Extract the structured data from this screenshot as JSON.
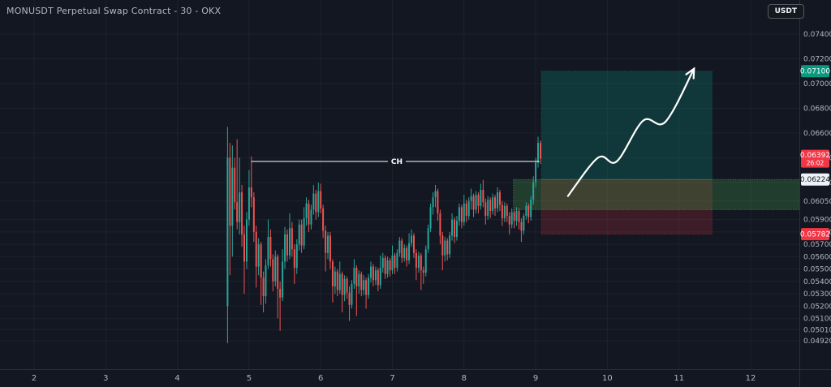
{
  "header": {
    "symbol_title": "MONUSDT Perpetual Swap Contract - 30 - OKX",
    "currency_button": "USDT"
  },
  "colors": {
    "background": "#131722",
    "grid": "#1e222d",
    "axis_border": "#2a2e39",
    "axis_text": "#b2b5be",
    "candle_up": "#26a69a",
    "candle_down": "#ef5350",
    "badge_red": "#f23645",
    "badge_teal": "#089981",
    "badge_white": "#eef1f6",
    "badge_white_text": "#131722",
    "target_zone_fill": "rgba(8,153,129,0.25)",
    "target_zone_border": "rgba(8,153,129,0.55)",
    "stop_zone_fill": "rgba(242,54,69,0.18)",
    "stop_zone_border": "rgba(242,54,69,0.55)",
    "demand_band_fill": "rgba(76,175,80,0.25)",
    "demand_band_border": "rgba(110,190,115,0.6)",
    "drawing_white": "#ffffff"
  },
  "chart_data": {
    "type": "candlestick",
    "symbol": "MONUSDT",
    "contract": "Perpetual Swap Contract",
    "interval": "30",
    "exchange": "OKX",
    "last_price": 0.06392,
    "bar_countdown": "26:02",
    "x_axis": {
      "tick_labels": [
        "2",
        "3",
        "4",
        "5",
        "6",
        "7",
        "8",
        "9",
        "10",
        "11",
        "12"
      ],
      "tick_values": [
        2,
        3,
        4,
        5,
        6,
        7,
        8,
        9,
        10,
        11,
        12
      ]
    },
    "y_axis": {
      "tick_labels": [
        "0.07400",
        "0.07200",
        "0.07000",
        "0.06800",
        "0.06600",
        "0.06400",
        "0.06200",
        "0.06050",
        "0.05900",
        "0.05800",
        "0.05700",
        "0.05600",
        "0.05500",
        "0.05400",
        "0.05300",
        "0.05200",
        "0.05100",
        "0.05010",
        "0.04920"
      ],
      "visible_price_range": [
        0.0469,
        0.0768
      ],
      "scale": "linear"
    },
    "price_badges": [
      {
        "id": "target",
        "label": "0.07100",
        "price": 0.071,
        "style": "teal"
      },
      {
        "id": "last",
        "label": "0.06392",
        "sub_label": "26:02",
        "price": 0.06392,
        "style": "red"
      },
      {
        "id": "entry",
        "label": "0.06224",
        "price": 0.06224,
        "style": "white"
      },
      {
        "id": "stop",
        "label": "0.05782",
        "price": 0.05782,
        "style": "red"
      }
    ],
    "annotations": {
      "ch_line": {
        "label": "CH",
        "price": 0.0637,
        "day_start": 5.03,
        "day_end": 9.05
      },
      "target_zone": {
        "price_top": 0.071,
        "price_bottom": 0.06224,
        "day_start": 9.08,
        "day_end": 11.46
      },
      "stop_zone": {
        "price_top": 0.06224,
        "price_bottom": 0.05782,
        "day_start": 9.08,
        "day_end": 11.46
      },
      "demand_band": {
        "price_top": 0.06224,
        "price_bottom": 0.0598,
        "day_start": 8.69,
        "day_end": 12.68
      },
      "arrow": {
        "points": [
          [
            9.45,
            0.0609
          ],
          [
            9.87,
            0.064
          ],
          [
            10.13,
            0.0637
          ],
          [
            10.5,
            0.067
          ],
          [
            10.81,
            0.0669
          ],
          [
            11.21,
            0.0712
          ]
        ]
      }
    },
    "candles": [
      [
        4.7,
        0.052,
        0.0665,
        0.049,
        0.064
      ],
      [
        4.733,
        0.064,
        0.0652,
        0.0545,
        0.0585
      ],
      [
        4.767,
        0.0585,
        0.065,
        0.056,
        0.0632
      ],
      [
        4.8,
        0.0632,
        0.064,
        0.0598,
        0.0604
      ],
      [
        4.833,
        0.0604,
        0.0655,
        0.0582,
        0.0588
      ],
      [
        4.867,
        0.0588,
        0.064,
        0.0578,
        0.0612
      ],
      [
        4.9,
        0.0612,
        0.0618,
        0.0568,
        0.0578
      ],
      [
        4.933,
        0.0578,
        0.0585,
        0.053,
        0.0556
      ],
      [
        4.967,
        0.0556,
        0.0596,
        0.055,
        0.059
      ],
      [
        5.0,
        0.059,
        0.063,
        0.0585,
        0.0616
      ],
      [
        5.033,
        0.0616,
        0.0641,
        0.06,
        0.0608
      ],
      [
        5.067,
        0.0608,
        0.0612,
        0.0572,
        0.058
      ],
      [
        5.1,
        0.058,
        0.0585,
        0.0535,
        0.0552
      ],
      [
        5.133,
        0.0552,
        0.0575,
        0.0545,
        0.057
      ],
      [
        5.167,
        0.057,
        0.0572,
        0.0521,
        0.0543
      ],
      [
        5.2,
        0.0543,
        0.0548,
        0.0515,
        0.0528
      ],
      [
        5.233,
        0.0528,
        0.0558,
        0.0522,
        0.0553
      ],
      [
        5.267,
        0.0553,
        0.059,
        0.055,
        0.0576
      ],
      [
        5.3,
        0.0576,
        0.0582,
        0.0552,
        0.0558
      ],
      [
        5.333,
        0.0558,
        0.0562,
        0.0532,
        0.054
      ],
      [
        5.367,
        0.054,
        0.0565,
        0.0536,
        0.056
      ],
      [
        5.4,
        0.056,
        0.0562,
        0.051,
        0.0534
      ],
      [
        5.433,
        0.0534,
        0.054,
        0.05,
        0.0527
      ],
      [
        5.467,
        0.0527,
        0.0566,
        0.0524,
        0.0556
      ],
      [
        5.5,
        0.0556,
        0.0584,
        0.055,
        0.0578
      ],
      [
        5.533,
        0.0578,
        0.0582,
        0.0556,
        0.0561
      ],
      [
        5.567,
        0.0561,
        0.0595,
        0.0558,
        0.0583
      ],
      [
        5.6,
        0.0583,
        0.0588,
        0.056,
        0.0566
      ],
      [
        5.633,
        0.0566,
        0.057,
        0.0538,
        0.0551
      ],
      [
        5.667,
        0.0551,
        0.0574,
        0.0546,
        0.057
      ],
      [
        5.7,
        0.057,
        0.059,
        0.0565,
        0.0586
      ],
      [
        5.733,
        0.0586,
        0.059,
        0.0563,
        0.0569
      ],
      [
        5.767,
        0.0569,
        0.06,
        0.0566,
        0.0591
      ],
      [
        5.8,
        0.0591,
        0.0608,
        0.0585,
        0.0603
      ],
      [
        5.833,
        0.0603,
        0.0606,
        0.058,
        0.0586
      ],
      [
        5.867,
        0.0586,
        0.0602,
        0.0582,
        0.0598
      ],
      [
        5.9,
        0.0598,
        0.0618,
        0.0594,
        0.0611
      ],
      [
        5.933,
        0.0611,
        0.0614,
        0.059,
        0.0596
      ],
      [
        5.967,
        0.0596,
        0.062,
        0.0592,
        0.0613
      ],
      [
        6.0,
        0.0613,
        0.0619,
        0.0595,
        0.0599
      ],
      [
        6.033,
        0.0599,
        0.0602,
        0.0575,
        0.0581
      ],
      [
        6.067,
        0.0581,
        0.0585,
        0.0548,
        0.0563
      ],
      [
        6.1,
        0.0563,
        0.058,
        0.0558,
        0.0577
      ],
      [
        6.133,
        0.0577,
        0.058,
        0.055,
        0.0556
      ],
      [
        6.167,
        0.0556,
        0.0558,
        0.0523,
        0.0536
      ],
      [
        6.2,
        0.0536,
        0.0552,
        0.053,
        0.0548
      ],
      [
        6.233,
        0.0548,
        0.055,
        0.0528,
        0.0533
      ],
      [
        6.267,
        0.0533,
        0.0556,
        0.053,
        0.0546
      ],
      [
        6.3,
        0.0546,
        0.0548,
        0.0515,
        0.0529
      ],
      [
        6.333,
        0.0529,
        0.0545,
        0.0524,
        0.0542
      ],
      [
        6.367,
        0.0542,
        0.0544,
        0.0526,
        0.0531
      ],
      [
        6.4,
        0.0531,
        0.0536,
        0.0508,
        0.0521
      ],
      [
        6.433,
        0.0521,
        0.0541,
        0.0518,
        0.0538
      ],
      [
        6.467,
        0.0538,
        0.0558,
        0.0534,
        0.0551
      ],
      [
        6.5,
        0.0551,
        0.0553,
        0.0512,
        0.0536
      ],
      [
        6.533,
        0.0536,
        0.0549,
        0.053,
        0.0546
      ],
      [
        6.567,
        0.0546,
        0.0548,
        0.0528,
        0.0533
      ],
      [
        6.6,
        0.0533,
        0.0545,
        0.0529,
        0.0541
      ],
      [
        6.633,
        0.0541,
        0.0543,
        0.0518,
        0.0529
      ],
      [
        6.667,
        0.0529,
        0.0546,
        0.0526,
        0.0543
      ],
      [
        6.7,
        0.0543,
        0.0556,
        0.0539,
        0.0552
      ],
      [
        6.733,
        0.0552,
        0.0554,
        0.0536,
        0.0541
      ],
      [
        6.767,
        0.0541,
        0.0552,
        0.0537,
        0.0549
      ],
      [
        6.8,
        0.0549,
        0.0551,
        0.0532,
        0.0537
      ],
      [
        6.833,
        0.0537,
        0.0561,
        0.0534,
        0.0551
      ],
      [
        6.867,
        0.0551,
        0.0563,
        0.0547,
        0.0559
      ],
      [
        6.9,
        0.0559,
        0.0561,
        0.0542,
        0.0546
      ],
      [
        6.933,
        0.0546,
        0.056,
        0.0543,
        0.0557
      ],
      [
        6.967,
        0.0557,
        0.0559,
        0.0544,
        0.0549
      ],
      [
        7.0,
        0.0549,
        0.0569,
        0.0546,
        0.0561
      ],
      [
        7.033,
        0.0561,
        0.0563,
        0.0546,
        0.0551
      ],
      [
        7.067,
        0.0551,
        0.0566,
        0.0548,
        0.0563
      ],
      [
        7.1,
        0.0563,
        0.0576,
        0.056,
        0.0573
      ],
      [
        7.133,
        0.0573,
        0.0575,
        0.0555,
        0.0559
      ],
      [
        7.167,
        0.0559,
        0.057,
        0.0556,
        0.0567
      ],
      [
        7.2,
        0.0567,
        0.0569,
        0.0552,
        0.0557
      ],
      [
        7.233,
        0.0557,
        0.0579,
        0.0554,
        0.0571
      ],
      [
        7.267,
        0.0571,
        0.0582,
        0.0568,
        0.0577
      ],
      [
        7.3,
        0.0577,
        0.0579,
        0.0559,
        0.0563
      ],
      [
        7.333,
        0.0563,
        0.0566,
        0.0541,
        0.0551
      ],
      [
        7.367,
        0.0551,
        0.0564,
        0.0547,
        0.0561
      ],
      [
        7.4,
        0.0561,
        0.0563,
        0.0533,
        0.0549
      ],
      [
        7.433,
        0.0549,
        0.0552,
        0.0538,
        0.0547
      ],
      [
        7.467,
        0.0547,
        0.0569,
        0.0544,
        0.0566
      ],
      [
        7.5,
        0.0566,
        0.0586,
        0.0563,
        0.0583
      ],
      [
        7.533,
        0.0583,
        0.0603,
        0.058,
        0.06
      ],
      [
        7.567,
        0.06,
        0.0612,
        0.0594,
        0.0608
      ],
      [
        7.6,
        0.0608,
        0.0618,
        0.06,
        0.0613
      ],
      [
        7.633,
        0.0613,
        0.0615,
        0.0589,
        0.0595
      ],
      [
        7.667,
        0.0595,
        0.0598,
        0.057,
        0.0577
      ],
      [
        7.7,
        0.0577,
        0.058,
        0.0549,
        0.0561
      ],
      [
        7.733,
        0.0561,
        0.0576,
        0.0556,
        0.0573
      ],
      [
        7.767,
        0.0573,
        0.0575,
        0.0557,
        0.0562
      ],
      [
        7.8,
        0.0562,
        0.058,
        0.0559,
        0.0577
      ],
      [
        7.833,
        0.0577,
        0.0595,
        0.0573,
        0.059
      ],
      [
        7.867,
        0.059,
        0.0592,
        0.0571,
        0.0576
      ],
      [
        7.9,
        0.0576,
        0.0593,
        0.0573,
        0.0589
      ],
      [
        7.933,
        0.0589,
        0.0603,
        0.0585,
        0.06
      ],
      [
        7.967,
        0.06,
        0.0602,
        0.0583,
        0.0588
      ],
      [
        8.0,
        0.0588,
        0.061,
        0.0585,
        0.0603
      ],
      [
        8.033,
        0.0603,
        0.0606,
        0.0588,
        0.0593
      ],
      [
        8.067,
        0.0593,
        0.0608,
        0.059,
        0.0605
      ],
      [
        8.1,
        0.0605,
        0.0615,
        0.0598,
        0.0609
      ],
      [
        8.133,
        0.0609,
        0.0611,
        0.0592,
        0.0598
      ],
      [
        8.167,
        0.0598,
        0.0613,
        0.0595,
        0.061
      ],
      [
        8.2,
        0.061,
        0.0612,
        0.0595,
        0.0601
      ],
      [
        8.233,
        0.0601,
        0.0619,
        0.0598,
        0.0614
      ],
      [
        8.267,
        0.0614,
        0.0622,
        0.06,
        0.0604
      ],
      [
        8.3,
        0.0604,
        0.0607,
        0.0586,
        0.0593
      ],
      [
        8.333,
        0.0593,
        0.0609,
        0.059,
        0.0606
      ],
      [
        8.367,
        0.0606,
        0.0608,
        0.0591,
        0.0597
      ],
      [
        8.4,
        0.0597,
        0.0611,
        0.0594,
        0.0608
      ],
      [
        8.433,
        0.0608,
        0.061,
        0.0593,
        0.0599
      ],
      [
        8.467,
        0.0599,
        0.0616,
        0.0596,
        0.0612
      ],
      [
        8.5,
        0.0612,
        0.0614,
        0.0597,
        0.0602
      ],
      [
        8.533,
        0.0602,
        0.0605,
        0.0585,
        0.0591
      ],
      [
        8.567,
        0.0591,
        0.0604,
        0.0588,
        0.0601
      ],
      [
        8.6,
        0.0601,
        0.0603,
        0.0588,
        0.0593
      ],
      [
        8.633,
        0.0593,
        0.0596,
        0.0578,
        0.0586
      ],
      [
        8.667,
        0.0586,
        0.0599,
        0.0583,
        0.0596
      ],
      [
        8.7,
        0.0596,
        0.0598,
        0.0583,
        0.0589
      ],
      [
        8.733,
        0.0589,
        0.06,
        0.0585,
        0.0597
      ],
      [
        8.767,
        0.0597,
        0.0599,
        0.0582,
        0.0588
      ],
      [
        8.8,
        0.0588,
        0.0591,
        0.0572,
        0.0581
      ],
      [
        8.833,
        0.0581,
        0.0595,
        0.0578,
        0.0593
      ],
      [
        8.867,
        0.0593,
        0.0604,
        0.059,
        0.0601
      ],
      [
        8.9,
        0.0601,
        0.0603,
        0.0587,
        0.0592
      ],
      [
        8.933,
        0.0592,
        0.0609,
        0.0589,
        0.0606
      ],
      [
        8.967,
        0.0606,
        0.0625,
        0.0602,
        0.062
      ],
      [
        9.0,
        0.062,
        0.064,
        0.0616,
        0.0636
      ],
      [
        9.033,
        0.0636,
        0.0657,
        0.0632,
        0.0652
      ],
      [
        9.067,
        0.0652,
        0.0654,
        0.0635,
        0.06392
      ]
    ]
  }
}
